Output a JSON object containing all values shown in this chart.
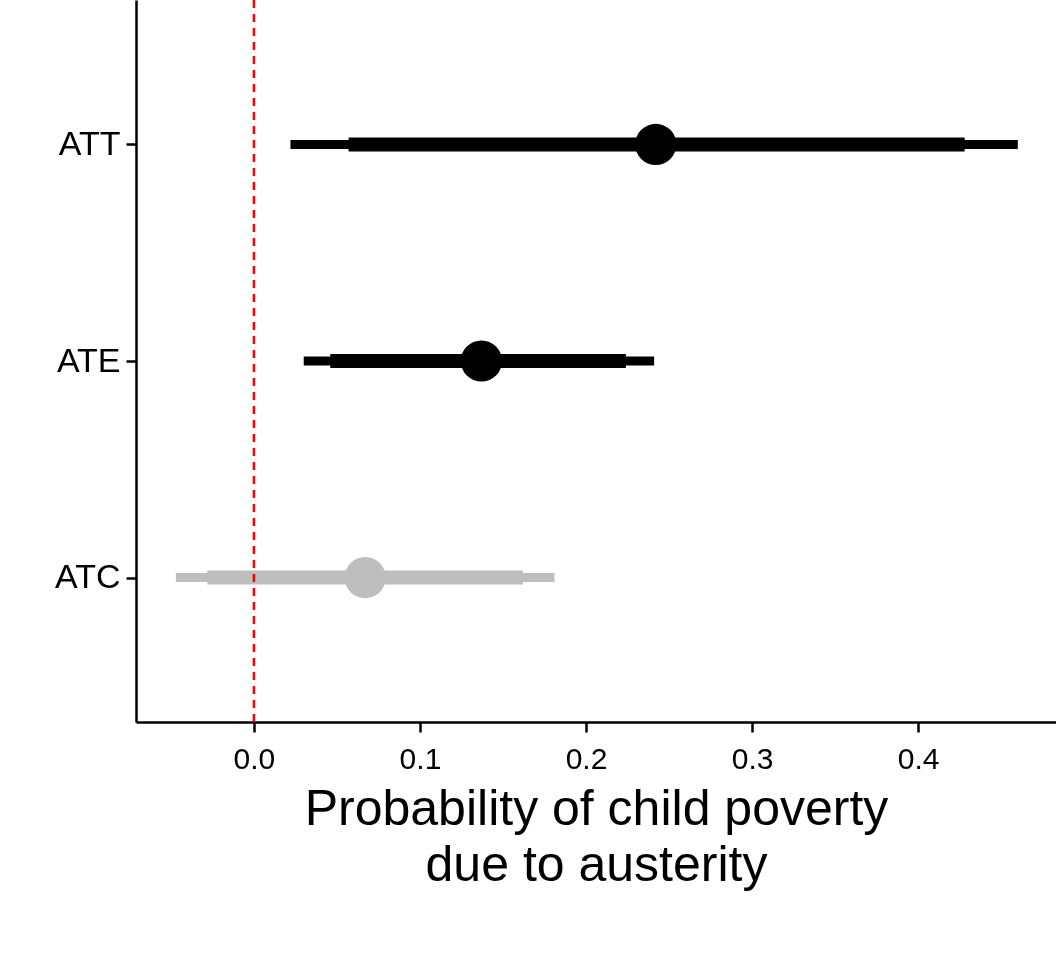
{
  "chart_data": {
    "type": "scatter",
    "orientation": "horizontal",
    "xlabel": "Probability of child poverty\ndue to austerity",
    "categories": [
      "ATT",
      "ATE",
      "ATC"
    ],
    "series": [
      {
        "type": "bar",
        "colors": [
          "#000000",
          "#000000",
          "#bebebe"
        ],
        "base": [
          0.057,
          0.046,
          -0.028
        ],
        "values": [
          0.371,
          0.178,
          0.19
        ]
      },
      {
        "colors": [
          "#000000",
          "#000000",
          "#bebebe"
        ],
        "marker": "circle",
        "values": [
          0.242,
          0.137,
          0.067
        ],
        "errors": [
          [
            0.022,
            0.46
          ],
          [
            0.03,
            0.241
          ],
          [
            -0.047,
            0.181
          ]
        ]
      }
    ],
    "xlim": [
      -0.071,
      0.483
    ],
    "xticks": [
      {
        "value": 0,
        "label": "0.0"
      },
      0.1,
      0.2,
      0.3,
      0.4
    ],
    "ref_lines": [
      {
        "axis": "x",
        "value": 0,
        "color": "#ff0000",
        "line_style": "dashed"
      }
    ],
    "grid": false
  }
}
